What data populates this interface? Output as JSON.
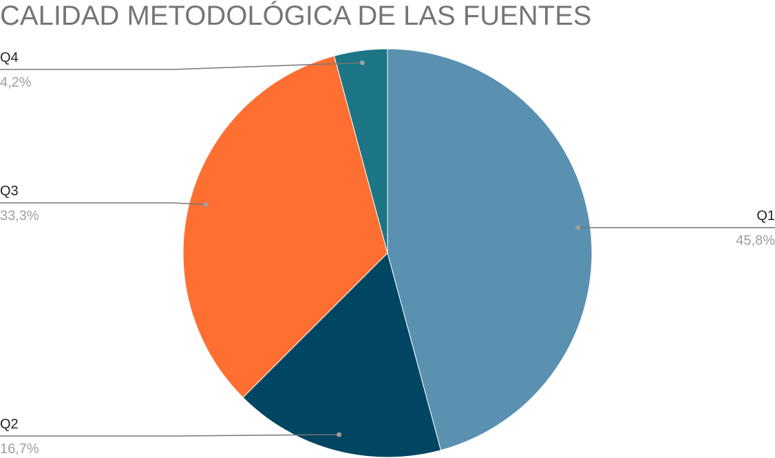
{
  "chart_data": {
    "type": "pie",
    "title": "CALIDAD METODOLÓGICA DE LAS FUENTES",
    "slices": [
      {
        "label": "Q1",
        "value": 45.8,
        "display": "45,8%",
        "color": "#5a91b0"
      },
      {
        "label": "Q2",
        "value": 16.7,
        "display": "16,7%",
        "color": "#004561"
      },
      {
        "label": "Q3",
        "value": 33.3,
        "display": "33,3%",
        "color": "#ff6f31"
      },
      {
        "label": "Q4",
        "value": 4.2,
        "display": "4,2%",
        "color": "#1c7685"
      }
    ],
    "start_angle": "12 o'clock",
    "direction": "clockwise",
    "legend": "none",
    "labels": "outside-with-leader-lines"
  }
}
